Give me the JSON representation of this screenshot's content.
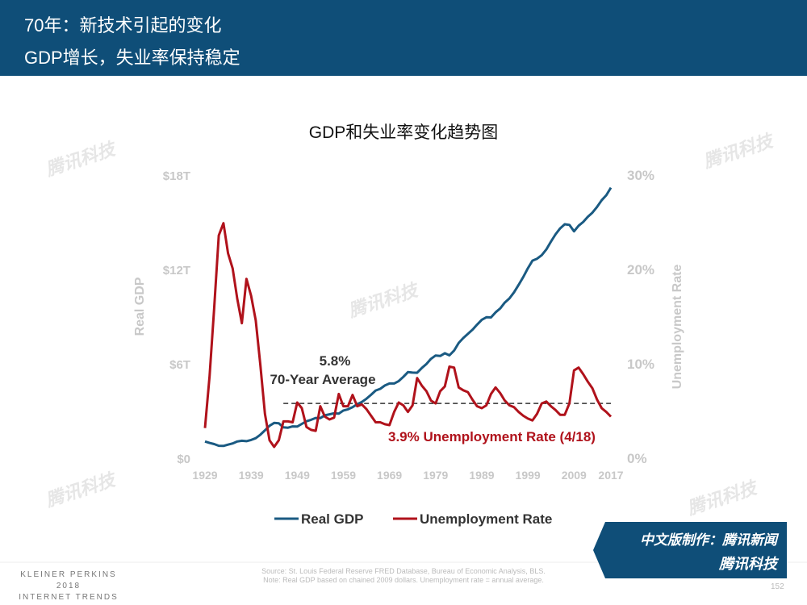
{
  "header": {
    "line1": "70年：新技术引起的变化",
    "line2": "GDP增长，失业率保持稳定"
  },
  "watermark": "腾讯科技",
  "chart_data": {
    "type": "line",
    "title": "GDP和失业率变化趋势图",
    "x": [
      1929,
      1930,
      1931,
      1932,
      1933,
      1934,
      1935,
      1936,
      1937,
      1938,
      1939,
      1940,
      1941,
      1942,
      1943,
      1944,
      1945,
      1946,
      1947,
      1948,
      1949,
      1950,
      1951,
      1952,
      1953,
      1954,
      1955,
      1956,
      1957,
      1958,
      1959,
      1960,
      1961,
      1962,
      1963,
      1964,
      1965,
      1966,
      1967,
      1968,
      1969,
      1970,
      1971,
      1972,
      1973,
      1974,
      1975,
      1976,
      1977,
      1978,
      1979,
      1980,
      1981,
      1982,
      1983,
      1984,
      1985,
      1986,
      1987,
      1988,
      1989,
      1990,
      1991,
      1992,
      1993,
      1994,
      1995,
      1996,
      1997,
      1998,
      1999,
      2000,
      2001,
      2002,
      2003,
      2004,
      2005,
      2006,
      2007,
      2008,
      2009,
      2010,
      2011,
      2012,
      2013,
      2014,
      2015,
      2016,
      2017
    ],
    "series": [
      {
        "name": "Real GDP",
        "color": "#1a5a82",
        "axis": "left",
        "values": [
          1.06,
          0.97,
          0.9,
          0.79,
          0.78,
          0.86,
          0.94,
          1.06,
          1.11,
          1.08,
          1.16,
          1.27,
          1.49,
          1.77,
          2.06,
          2.24,
          2.22,
          1.96,
          1.94,
          2.02,
          2.01,
          2.18,
          2.35,
          2.44,
          2.56,
          2.55,
          2.73,
          2.79,
          2.85,
          2.83,
          3.03,
          3.11,
          3.24,
          3.43,
          3.57,
          3.78,
          4.03,
          4.3,
          4.41,
          4.62,
          4.75,
          4.75,
          4.9,
          5.17,
          5.47,
          5.44,
          5.43,
          5.73,
          5.99,
          6.32,
          6.53,
          6.5,
          6.67,
          6.54,
          6.84,
          7.33,
          7.64,
          7.9,
          8.17,
          8.49,
          8.8,
          8.96,
          8.95,
          9.27,
          9.52,
          9.89,
          10.16,
          10.55,
          11.02,
          11.52,
          12.07,
          12.56,
          12.68,
          12.91,
          13.27,
          13.77,
          14.23,
          14.61,
          14.87,
          14.83,
          14.42,
          14.78,
          15.02,
          15.35,
          15.61,
          15.98,
          16.4,
          16.72,
          17.2
        ]
      },
      {
        "name": "Unemployment Rate",
        "color": "#b0121b",
        "axis": "right",
        "values": [
          3.2,
          8.7,
          15.9,
          23.6,
          24.9,
          21.7,
          20.1,
          16.9,
          14.3,
          19.0,
          17.2,
          14.6,
          9.9,
          4.7,
          1.9,
          1.2,
          1.9,
          3.9,
          3.9,
          3.8,
          5.9,
          5.3,
          3.3,
          3.0,
          2.9,
          5.5,
          4.4,
          4.1,
          4.3,
          6.8,
          5.5,
          5.5,
          6.7,
          5.5,
          5.7,
          5.2,
          4.5,
          3.8,
          3.8,
          3.6,
          3.5,
          4.9,
          5.9,
          5.6,
          4.9,
          5.6,
          8.5,
          7.7,
          7.1,
          6.1,
          5.8,
          7.1,
          7.6,
          9.7,
          9.6,
          7.5,
          7.2,
          7.0,
          6.2,
          5.5,
          5.3,
          5.6,
          6.8,
          7.5,
          6.9,
          6.1,
          5.6,
          5.4,
          4.9,
          4.5,
          4.2,
          4.0,
          4.7,
          5.8,
          6.0,
          5.5,
          5.1,
          4.6,
          4.6,
          5.8,
          9.3,
          9.6,
          8.9,
          8.1,
          7.4,
          6.2,
          5.3,
          4.9,
          4.4
        ]
      }
    ],
    "x_ticks": [
      "1929",
      "1939",
      "1949",
      "1959",
      "1969",
      "1979",
      "1989",
      "1999",
      "2009",
      "2017"
    ],
    "y_left": {
      "label": "Real GDP",
      "ticks": [
        "$0",
        "$6T",
        "$12T",
        "$18T"
      ],
      "range": [
        0,
        18
      ]
    },
    "y_right": {
      "label": "Unemployment Rate",
      "ticks": [
        "0%",
        "10%",
        "20%",
        "30%"
      ],
      "range": [
        0,
        30
      ]
    },
    "average": {
      "value": 5.8,
      "from": 1946,
      "to": 2017,
      "label1": "5.8%",
      "label2": "70-Year Average"
    },
    "annotation": "3.9% Unemployment Rate (4/18)",
    "legend_position": "bottom"
  },
  "footer": {
    "source": "Source: St. Louis Federal Reserve FRED Database, Bureau of Economic Analysis, BLS.",
    "note": "Note: Real GDP based on chained 2009 dollars. Unemployment rate = annual average.",
    "page": "152",
    "kp1": "KLEINER PERKINS",
    "kp2": "2018",
    "kp3": "INTERNET TRENDS"
  },
  "badge": {
    "line1": "中文版制作：腾讯新闻",
    "line2": "腾讯科技"
  }
}
